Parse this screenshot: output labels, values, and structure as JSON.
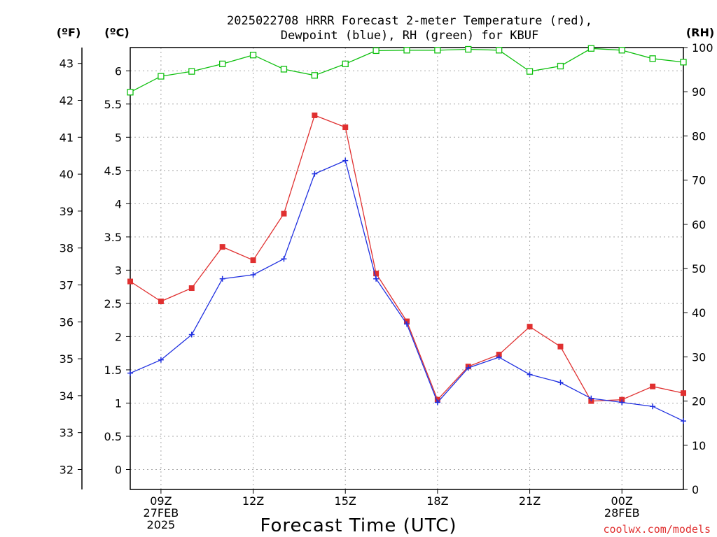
{
  "chart_data": {
    "type": "line",
    "title_lines": [
      "2025022708 HRRR Forecast 2-meter Temperature (red),",
      "Dewpoint (blue), RH (green) for KBUF"
    ],
    "xlabel": "Forecast Time (UTC)",
    "credit": "coolwx.com/models",
    "units": {
      "fahrenheit": "(ºF)",
      "celsius": "(ºC)",
      "rh": "(RH)"
    },
    "x_hours": [
      8,
      9,
      10,
      11,
      12,
      13,
      14,
      15,
      16,
      17,
      18,
      19,
      20,
      21,
      22,
      23,
      24,
      25,
      26
    ],
    "xlim": [
      8,
      26
    ],
    "x_ticks": [
      {
        "hour": 9,
        "lines": [
          "09Z",
          "27FEB",
          "2025"
        ]
      },
      {
        "hour": 12,
        "lines": [
          "12Z"
        ]
      },
      {
        "hour": 15,
        "lines": [
          "15Z"
        ]
      },
      {
        "hour": 18,
        "lines": [
          "18Z"
        ]
      },
      {
        "hour": 21,
        "lines": [
          "21Z"
        ]
      },
      {
        "hour": 24,
        "lines": [
          "00Z",
          "28FEB"
        ]
      }
    ],
    "celsius_axis": {
      "ylim": [
        -0.3,
        6.35
      ],
      "ticks": [
        "0",
        "0.5",
        "1",
        "1.5",
        "2",
        "2.5",
        "3",
        "3.5",
        "4",
        "4.5",
        "5",
        "5.5",
        "6"
      ]
    },
    "fahrenheit_axis": {
      "ticks": [
        "32",
        "33",
        "34",
        "35",
        "36",
        "37",
        "38",
        "39",
        "40",
        "41",
        "42",
        "43"
      ]
    },
    "rh_axis": {
      "ylim": [
        0,
        100
      ],
      "ticks": [
        "0",
        "10",
        "20",
        "30",
        "40",
        "50",
        "60",
        "70",
        "80",
        "90",
        "100"
      ]
    },
    "series": [
      {
        "color": "#e03030",
        "marker": "square",
        "axis": "celsius",
        "values": [
          2.83,
          2.53,
          2.73,
          3.35,
          3.15,
          3.85,
          5.33,
          5.15,
          2.95,
          2.23,
          1.05,
          1.55,
          1.73,
          2.15,
          1.85,
          1.03,
          1.05,
          1.25,
          1.15
        ]
      },
      {
        "color": "#2030e0",
        "marker": "plus",
        "axis": "celsius",
        "values": [
          1.45,
          1.65,
          2.03,
          2.87,
          2.93,
          3.17,
          4.45,
          4.65,
          2.87,
          2.19,
          1.01,
          1.53,
          1.69,
          1.43,
          1.31,
          1.07,
          1.01,
          0.95,
          0.73
        ]
      },
      {
        "color": "#10c010",
        "marker": "open-square",
        "axis": "rh",
        "values": [
          89.9,
          93.5,
          94.6,
          96.3,
          98.3,
          95.1,
          93.7,
          96.3,
          99.3,
          99.4,
          99.4,
          99.6,
          99.4,
          94.6,
          95.8,
          99.8,
          99.4,
          97.5,
          96.7
        ]
      }
    ],
    "grid": true
  }
}
